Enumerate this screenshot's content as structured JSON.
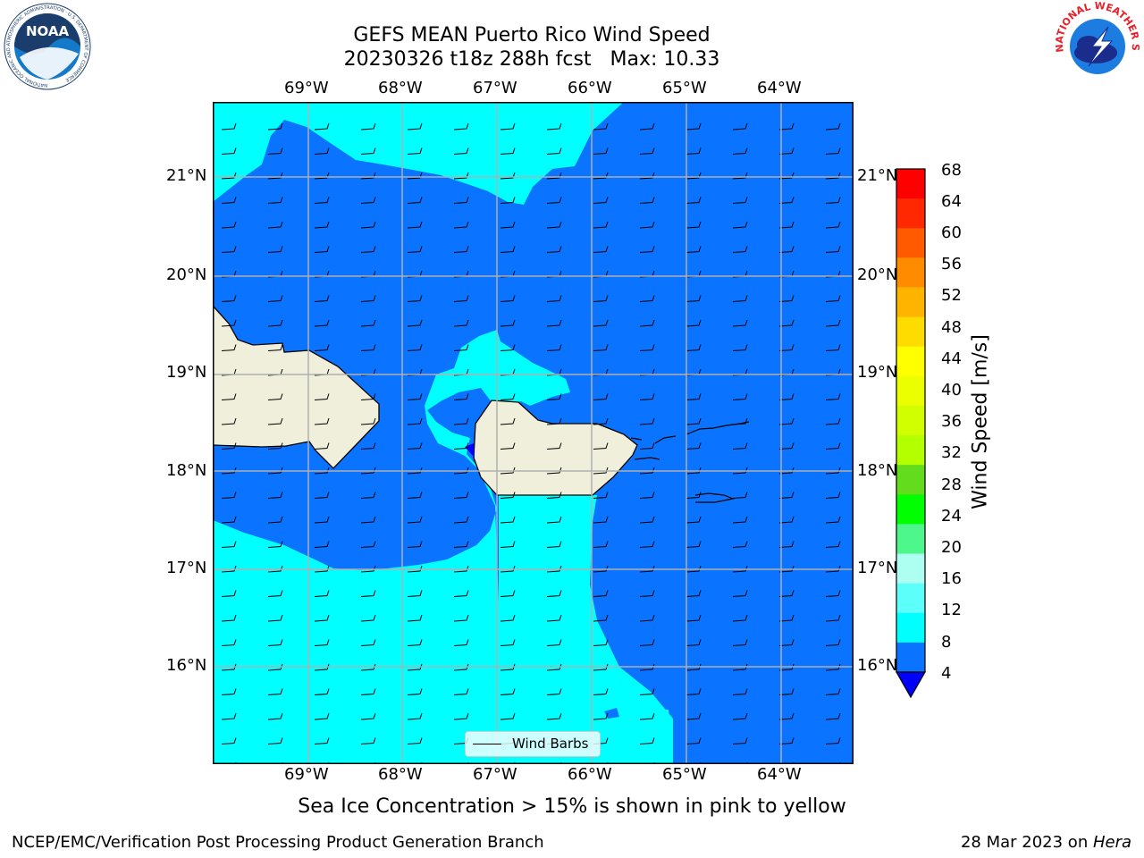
{
  "title": {
    "line1": "GEFS MEAN Puerto Rico Wind Speed",
    "line2": "20230326 t18z 288h fcst   Max: 10.33"
  },
  "map": {
    "lon_labels": [
      "69°W",
      "68°W",
      "67°W",
      "66°W",
      "65°W",
      "64°W"
    ],
    "lat_labels": [
      "21°N",
      "20°N",
      "19°N",
      "18°N",
      "17°N",
      "16°N"
    ],
    "land_color": "#efefdc",
    "ocean_low_color": "#0a73ff",
    "ocean_mid_color": "#00ffff"
  },
  "colorbar": {
    "label": "Wind Speed [m/s]",
    "ticks": [
      "68",
      "64",
      "60",
      "56",
      "52",
      "48",
      "44",
      "40",
      "36",
      "32",
      "28",
      "24",
      "20",
      "16",
      "12",
      "8",
      "4"
    ],
    "colors": [
      "#ff0000",
      "#ff2800",
      "#ff5a00",
      "#ff8c00",
      "#ffb400",
      "#ffdc00",
      "#ffff00",
      "#ebff00",
      "#d2ff00",
      "#b4ff00",
      "#64dc1e",
      "#00ff00",
      "#4df78c",
      "#adfff2",
      "#5dfffb",
      "#00ffff",
      "#0a73ff"
    ],
    "under_color": "#0000ff"
  },
  "legend": {
    "label": "Wind Barbs"
  },
  "caption": "Sea Ice Concentration > 15% is shown in pink to yellow",
  "footer": {
    "left": "NCEP/EMC/Verification Post Processing Product Generation Branch",
    "date": "28 Mar 2023 on ",
    "machine": "Hera"
  },
  "logos": {
    "noaa": "NOAA",
    "noaa_ring": "NATIONAL OCEANIC AND ATMOSPHERIC ADMINISTRATION · U.S. DEPARTMENT OF COMMERCE",
    "nws_ring": "NATIONAL WEATHER SERVICE"
  }
}
